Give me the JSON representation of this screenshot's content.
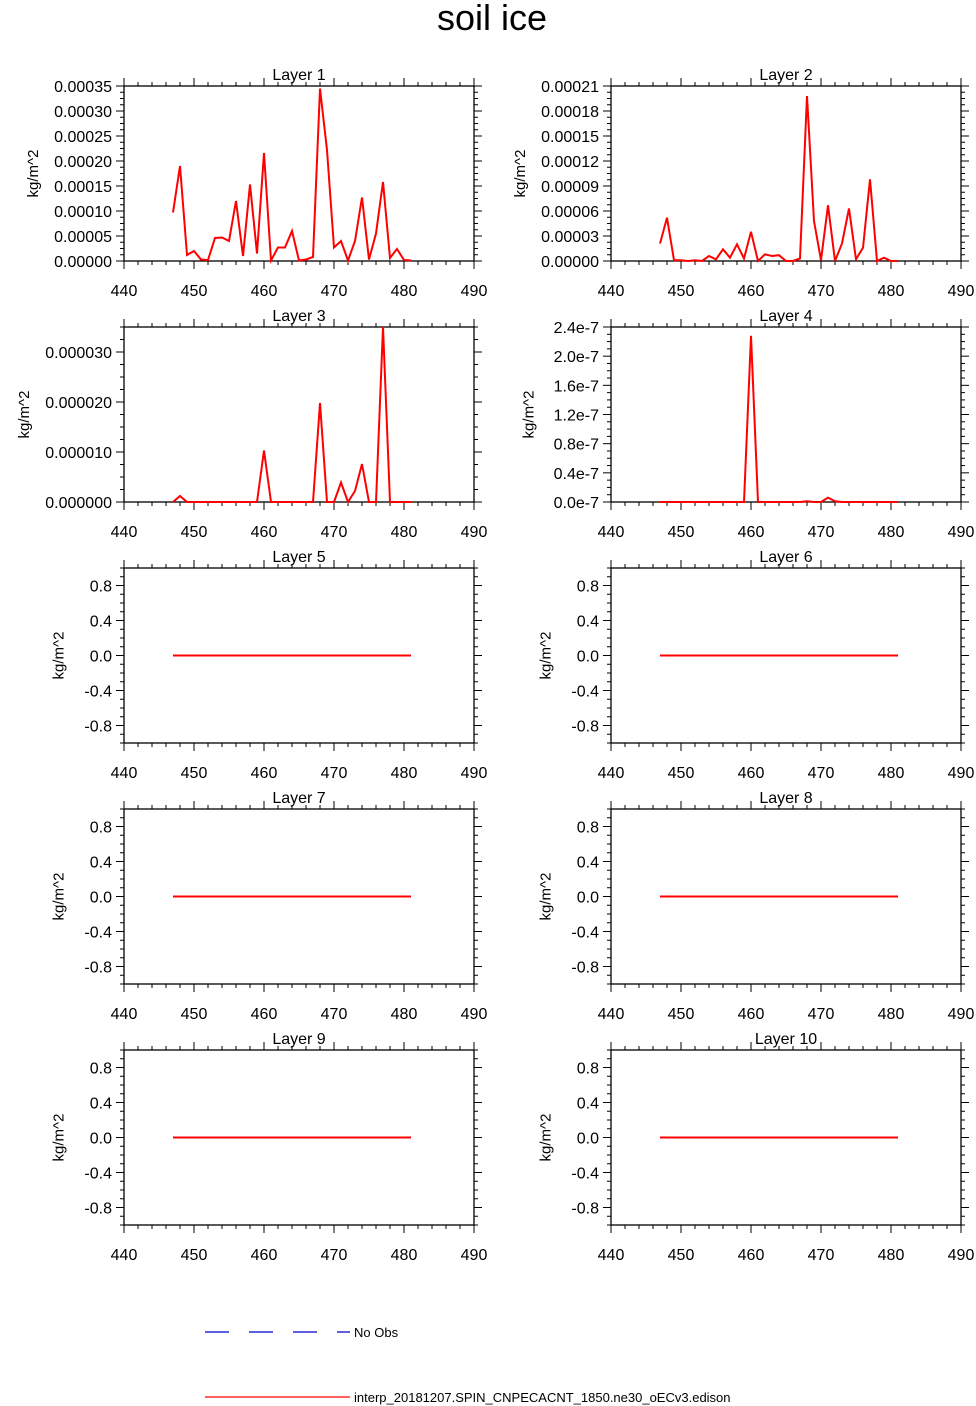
{
  "figure": {
    "title": "soil ice",
    "legend": [
      {
        "label": "No Obs",
        "color": "#0000cc",
        "style": "dashed"
      },
      {
        "label": "interp_20181207.SPIN_CNPECACNT_1850.ne30_oECv3.edison",
        "color": "#ff0000",
        "style": "solid"
      }
    ]
  },
  "chart_data": [
    {
      "type": "line",
      "title": "Layer 1",
      "xlabel": "",
      "ylabel": "kg/m^2",
      "xlim": [
        440,
        490
      ],
      "ylim": [
        0,
        0.00035
      ],
      "xticks": [
        440,
        450,
        460,
        470,
        480,
        490
      ],
      "yticks": [
        0,
        5e-05,
        0.0001,
        0.00015,
        0.0002,
        0.00025,
        0.0003,
        0.00035
      ],
      "ytick_labels": [
        "0.00000",
        "0.00005",
        "0.00010",
        "0.00015",
        "0.00020",
        "0.00025",
        "0.00030",
        "0.00035"
      ],
      "series": [
        {
          "name": "interp_20181207.SPIN_CNPECACNT_1850.ne30_oECv3.edison",
          "color": "#ff0000",
          "x": [
            447,
            448,
            449,
            450,
            451,
            452,
            453,
            454,
            455,
            456,
            457,
            458,
            459,
            460,
            461,
            462,
            463,
            464,
            465,
            466,
            467,
            468,
            469,
            470,
            471,
            472,
            473,
            474,
            475,
            476,
            477,
            478,
            479,
            480,
            481
          ],
          "y": [
            9.7e-05,
            0.00019,
            1.2e-05,
            2e-05,
            3e-06,
            2e-06,
            4.6e-05,
            4.7e-05,
            4e-05,
            0.00012,
            1e-05,
            0.000153,
            1.5e-05,
            0.000216,
            1e-06,
            2.7e-05,
            2.7e-05,
            6e-05,
            1e-06,
            3e-06,
            8e-06,
            0.000345,
            0.000222,
            2.7e-05,
            4e-05,
            1e-06,
            4e-05,
            0.000127,
            3e-06,
            5.5e-05,
            0.000158,
            6e-06,
            2.4e-05,
            2e-06,
            1e-06
          ]
        }
      ]
    },
    {
      "type": "line",
      "title": "Layer 2",
      "xlabel": "",
      "ylabel": "kg/m^2",
      "xlim": [
        440,
        490
      ],
      "ylim": [
        0,
        0.00021
      ],
      "xticks": [
        440,
        450,
        460,
        470,
        480,
        490
      ],
      "yticks": [
        0,
        3e-05,
        6e-05,
        9e-05,
        0.00012,
        0.00015,
        0.00018,
        0.00021
      ],
      "ytick_labels": [
        "0.00000",
        "0.00003",
        "0.00006",
        "0.00009",
        "0.00012",
        "0.00015",
        "0.00018",
        "0.00021"
      ],
      "series": [
        {
          "name": "interp_20181207.SPIN_CNPECACNT_1850.ne30_oECv3.edison",
          "color": "#ff0000",
          "x": [
            447,
            448,
            449,
            450,
            451,
            452,
            453,
            454,
            455,
            456,
            457,
            458,
            459,
            460,
            461,
            462,
            463,
            464,
            465,
            466,
            467,
            468,
            469,
            470,
            471,
            472,
            473,
            474,
            475,
            476,
            477,
            478,
            479,
            480,
            481
          ],
          "y": [
            2.1e-05,
            5.2e-05,
            1e-06,
            1e-06,
            0.0,
            1e-06,
            0.0,
            6e-06,
            2e-06,
            1.4e-05,
            4e-06,
            2e-05,
            3e-06,
            3.5e-05,
            0.0,
            8e-06,
            6e-06,
            7e-06,
            0.0,
            0.0,
            3e-06,
            0.000198,
            4.8e-05,
            1e-06,
            6.7e-05,
            0.0,
            2.1e-05,
            6.3e-05,
            2e-06,
            1.6e-05,
            9.8e-05,
            0.0,
            4e-06,
            0.0,
            0.0
          ]
        }
      ]
    },
    {
      "type": "line",
      "title": "Layer 3",
      "xlabel": "",
      "ylabel": "kg/m^2",
      "xlim": [
        440,
        490
      ],
      "ylim": [
        0,
        3.5e-05
      ],
      "xticks": [
        440,
        450,
        460,
        470,
        480,
        490
      ],
      "yticks": [
        0,
        1e-05,
        2e-05,
        3e-05
      ],
      "ytick_labels": [
        "0.000000",
        "0.000010",
        "0.000020",
        "0.000030"
      ],
      "series": [
        {
          "name": "interp_20181207.SPIN_CNPECACNT_1850.ne30_oECv3.edison",
          "color": "#ff0000",
          "x": [
            447,
            448,
            449,
            450,
            451,
            452,
            453,
            454,
            455,
            456,
            457,
            458,
            459,
            460,
            461,
            462,
            463,
            464,
            465,
            466,
            467,
            468,
            469,
            470,
            471,
            472,
            473,
            474,
            475,
            476,
            477,
            478,
            479,
            480,
            481
          ],
          "y": [
            0.0,
            1.2e-06,
            0.0,
            0.0,
            0.0,
            0.0,
            0.0,
            0.0,
            0.0,
            0.0,
            0.0,
            0.0,
            0.0,
            1.03e-05,
            0.0,
            0.0,
            0.0,
            0.0,
            0.0,
            0.0,
            0.0,
            1.98e-05,
            0.0,
            0.0,
            3.9e-06,
            0.0,
            2.2e-06,
            7.6e-06,
            0.0,
            0.0,
            3.5e-05,
            0.0,
            0.0,
            0.0,
            0.0
          ]
        }
      ]
    },
    {
      "type": "line",
      "title": "Layer 4",
      "xlabel": "",
      "ylabel": "kg/m^2",
      "xlim": [
        440,
        490
      ],
      "ylim": [
        0,
        2.4e-07
      ],
      "xticks": [
        440,
        450,
        460,
        470,
        480,
        490
      ],
      "yticks": [
        0,
        4e-08,
        8e-08,
        1.2e-07,
        1.6e-07,
        2e-07,
        2.4e-07
      ],
      "ytick_labels": [
        "0.0e-7",
        "0.4e-7",
        "0.8e-7",
        "1.2e-7",
        "1.6e-7",
        "2.0e-7",
        "2.4e-7"
      ],
      "series": [
        {
          "name": "interp_20181207.SPIN_CNPECACNT_1850.ne30_oECv3.edison",
          "color": "#ff0000",
          "x": [
            447,
            448,
            449,
            450,
            451,
            452,
            453,
            454,
            455,
            456,
            457,
            458,
            459,
            460,
            461,
            462,
            463,
            464,
            465,
            466,
            467,
            468,
            469,
            470,
            471,
            472,
            473,
            474,
            475,
            476,
            477,
            478,
            479,
            480,
            481
          ],
          "y": [
            0,
            0,
            0,
            0,
            0,
            0,
            0,
            0,
            0,
            0,
            0,
            0,
            0,
            2.28e-07,
            0,
            0,
            0,
            0,
            0,
            0,
            0,
            1e-09,
            0,
            0,
            6e-09,
            1e-09,
            0,
            0,
            0,
            0,
            0,
            0,
            0,
            0,
            0
          ]
        }
      ]
    },
    {
      "type": "line",
      "title": "Layer 5",
      "xlabel": "",
      "ylabel": "kg/m^2",
      "xlim": [
        440,
        490
      ],
      "ylim": [
        -1,
        1
      ],
      "xticks": [
        440,
        450,
        460,
        470,
        480,
        490
      ],
      "yticks": [
        -0.8,
        -0.4,
        0.0,
        0.4,
        0.8
      ],
      "ytick_labels": [
        "-0.8",
        "-0.4",
        "0.0",
        "0.4",
        "0.8"
      ],
      "series": [
        {
          "name": "interp_20181207.SPIN_CNPECACNT_1850.ne30_oECv3.edison",
          "color": "#ff0000",
          "x": [
            447,
            481
          ],
          "y": [
            0,
            0
          ]
        }
      ]
    },
    {
      "type": "line",
      "title": "Layer 6",
      "xlabel": "",
      "ylabel": "kg/m^2",
      "xlim": [
        440,
        490
      ],
      "ylim": [
        -1,
        1
      ],
      "xticks": [
        440,
        450,
        460,
        470,
        480,
        490
      ],
      "yticks": [
        -0.8,
        -0.4,
        0.0,
        0.4,
        0.8
      ],
      "ytick_labels": [
        "-0.8",
        "-0.4",
        "0.0",
        "0.4",
        "0.8"
      ],
      "series": [
        {
          "name": "interp_20181207.SPIN_CNPECACNT_1850.ne30_oECv3.edison",
          "color": "#ff0000",
          "x": [
            447,
            481
          ],
          "y": [
            0,
            0
          ]
        }
      ]
    },
    {
      "type": "line",
      "title": "Layer 7",
      "xlabel": "",
      "ylabel": "kg/m^2",
      "xlim": [
        440,
        490
      ],
      "ylim": [
        -1,
        1
      ],
      "xticks": [
        440,
        450,
        460,
        470,
        480,
        490
      ],
      "yticks": [
        -0.8,
        -0.4,
        0.0,
        0.4,
        0.8
      ],
      "ytick_labels": [
        "-0.8",
        "-0.4",
        "0.0",
        "0.4",
        "0.8"
      ],
      "series": [
        {
          "name": "interp_20181207.SPIN_CNPECACNT_1850.ne30_oECv3.edison",
          "color": "#ff0000",
          "x": [
            447,
            481
          ],
          "y": [
            0,
            0
          ]
        }
      ]
    },
    {
      "type": "line",
      "title": "Layer 8",
      "xlabel": "",
      "ylabel": "kg/m^2",
      "xlim": [
        440,
        490
      ],
      "ylim": [
        -1,
        1
      ],
      "xticks": [
        440,
        450,
        460,
        470,
        480,
        490
      ],
      "yticks": [
        -0.8,
        -0.4,
        0.0,
        0.4,
        0.8
      ],
      "ytick_labels": [
        "-0.8",
        "-0.4",
        "0.0",
        "0.4",
        "0.8"
      ],
      "series": [
        {
          "name": "interp_20181207.SPIN_CNPECACNT_1850.ne30_oECv3.edison",
          "color": "#ff0000",
          "x": [
            447,
            481
          ],
          "y": [
            0,
            0
          ]
        }
      ]
    },
    {
      "type": "line",
      "title": "Layer 9",
      "xlabel": "",
      "ylabel": "kg/m^2",
      "xlim": [
        440,
        490
      ],
      "ylim": [
        -1,
        1
      ],
      "xticks": [
        440,
        450,
        460,
        470,
        480,
        490
      ],
      "yticks": [
        -0.8,
        -0.4,
        0.0,
        0.4,
        0.8
      ],
      "ytick_labels": [
        "-0.8",
        "-0.4",
        "0.0",
        "0.4",
        "0.8"
      ],
      "series": [
        {
          "name": "interp_20181207.SPIN_CNPECACNT_1850.ne30_oECv3.edison",
          "color": "#ff0000",
          "x": [
            447,
            481
          ],
          "y": [
            0,
            0
          ]
        }
      ]
    },
    {
      "type": "line",
      "title": "Layer 10",
      "xlabel": "",
      "ylabel": "kg/m^2",
      "xlim": [
        440,
        490
      ],
      "ylim": [
        -1,
        1
      ],
      "xticks": [
        440,
        450,
        460,
        470,
        480,
        490
      ],
      "yticks": [
        -0.8,
        -0.4,
        0.0,
        0.4,
        0.8
      ],
      "ytick_labels": [
        "-0.8",
        "-0.4",
        "0.0",
        "0.4",
        "0.8"
      ],
      "series": [
        {
          "name": "interp_20181207.SPIN_CNPECACNT_1850.ne30_oECv3.edison",
          "color": "#ff0000",
          "x": [
            447,
            481
          ],
          "y": [
            0,
            0
          ]
        }
      ]
    }
  ]
}
